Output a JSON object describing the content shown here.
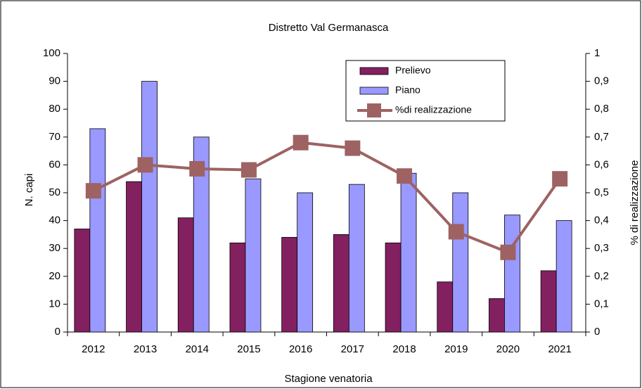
{
  "chart_data": {
    "type": "bar_line",
    "title": "Distretto Val Germanasca",
    "x_label": "Stagione venatoria",
    "y_label": "N. capi",
    "y2_label": "% di realizzazione",
    "categories": [
      "2012",
      "2013",
      "2014",
      "2015",
      "2016",
      "2017",
      "2018",
      "2019",
      "2020",
      "2021"
    ],
    "series": [
      {
        "name": "Prelievo",
        "color": "#832060",
        "kind": "bar",
        "values": [
          37,
          54,
          41,
          32,
          34,
          35,
          32,
          18,
          12,
          22
        ]
      },
      {
        "name": "Piano",
        "color": "#9999ff",
        "kind": "bar",
        "values": [
          73,
          90,
          70,
          55,
          50,
          53,
          57,
          50,
          42,
          40
        ]
      },
      {
        "name": "%di realizzazione",
        "color": "#9e6262",
        "kind": "line",
        "axis": "y2",
        "values": [
          0.507,
          0.6,
          0.586,
          0.582,
          0.68,
          0.66,
          0.56,
          0.36,
          0.286,
          0.55
        ]
      }
    ],
    "ylim": [
      0,
      100
    ],
    "yticks": [
      0,
      10,
      20,
      30,
      40,
      50,
      60,
      70,
      80,
      90,
      100
    ],
    "y2lim": [
      0,
      1
    ],
    "y2ticks": [
      0,
      {
        "value": 0.1,
        "label": "0,1"
      },
      {
        "value": 0.2,
        "label": "0,2"
      },
      {
        "value": 0.3,
        "label": "0,3"
      },
      {
        "value": 0.4,
        "label": "0,4"
      },
      {
        "value": 0.5,
        "label": "0,5"
      },
      {
        "value": 0.6,
        "label": "0,6"
      },
      {
        "value": 0.7,
        "label": "0,7"
      },
      {
        "value": 0.8,
        "label": "0,8"
      },
      {
        "value": 0.9,
        "label": "0,9"
      },
      1
    ],
    "grid": false,
    "legend": "top-right"
  }
}
